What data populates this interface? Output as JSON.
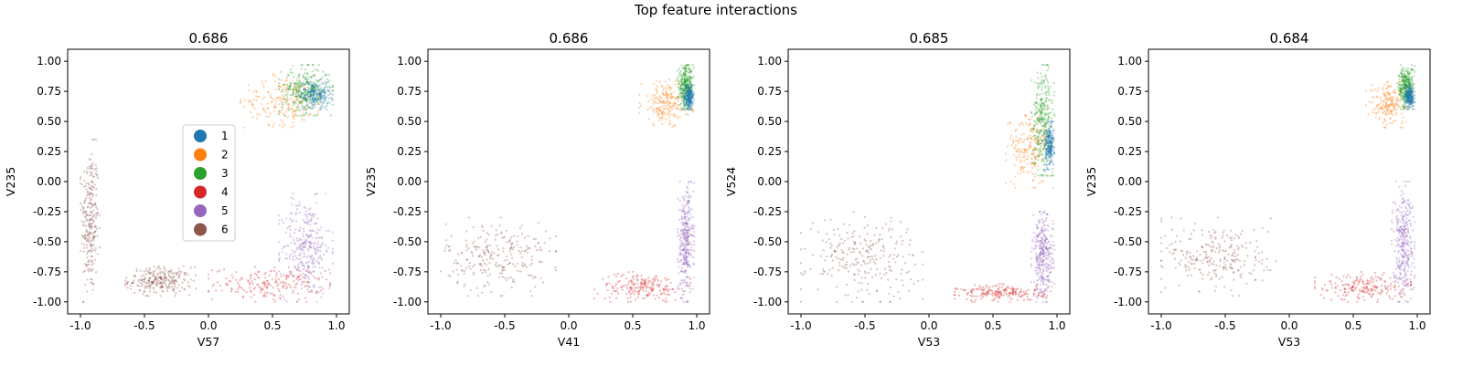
{
  "figure_title": "Top feature interactions",
  "colors": {
    "1": "#1f77b4",
    "2": "#ff7f0e",
    "3": "#2ca02c",
    "4": "#d62728",
    "5": "#9467bd",
    "6": "#8c564b"
  },
  "legend": {
    "placement": "center-left of first panel",
    "entries": [
      "1",
      "2",
      "3",
      "4",
      "5",
      "6"
    ]
  },
  "chart_data": [
    {
      "type": "scatter",
      "title": "0.686",
      "xlabel": "V57",
      "ylabel": "V235",
      "xlim": [
        -1.1,
        1.1
      ],
      "ylim": [
        -1.1,
        1.1
      ],
      "xticks": [
        "-1.0",
        "-0.5",
        "0.0",
        "0.5",
        "1.0"
      ],
      "yticks": [
        "1.00",
        "0.75",
        "0.50",
        "0.25",
        "0.00",
        "-0.25",
        "-0.50",
        "-0.75",
        "-1.00"
      ],
      "grid": false,
      "legend": true,
      "clusters": [
        {
          "group": "6",
          "x": [
            -1.0,
            -0.85
          ],
          "y": [
            -1.0,
            0.35
          ]
        },
        {
          "group": "6",
          "x": [
            -0.65,
            -0.1
          ],
          "y": [
            -0.95,
            -0.7
          ]
        },
        {
          "group": "4",
          "x": [
            0.0,
            0.95
          ],
          "y": [
            -1.0,
            -0.7
          ]
        },
        {
          "group": "5",
          "x": [
            0.55,
            0.97
          ],
          "y": [
            -1.0,
            -0.1
          ]
        },
        {
          "group": "2",
          "x": [
            0.25,
            0.95
          ],
          "y": [
            0.45,
            0.9
          ]
        },
        {
          "group": "3",
          "x": [
            0.55,
            0.97
          ],
          "y": [
            0.55,
            0.97
          ]
        },
        {
          "group": "1",
          "x": [
            0.7,
            0.97
          ],
          "y": [
            0.6,
            0.85
          ]
        }
      ]
    },
    {
      "type": "scatter",
      "title": "0.686",
      "xlabel": "V41",
      "ylabel": "V235",
      "xlim": [
        -1.1,
        1.1
      ],
      "ylim": [
        -1.1,
        1.1
      ],
      "xticks": [
        "-1.0",
        "-0.5",
        "0.0",
        "0.5",
        "1.0"
      ],
      "yticks": [
        "1.00",
        "0.75",
        "0.50",
        "0.25",
        "0.00",
        "-0.25",
        "-0.50",
        "-0.75",
        "-1.00"
      ],
      "grid": false,
      "legend": false,
      "clusters": [
        {
          "group": "6",
          "x": [
            -1.0,
            -0.1
          ],
          "y": [
            -0.95,
            -0.3
          ]
        },
        {
          "group": "4",
          "x": [
            0.2,
            0.95
          ],
          "y": [
            -1.0,
            -0.75
          ]
        },
        {
          "group": "5",
          "x": [
            0.85,
            0.98
          ],
          "y": [
            -1.0,
            0.0
          ]
        },
        {
          "group": "2",
          "x": [
            0.55,
            0.97
          ],
          "y": [
            0.45,
            0.85
          ]
        },
        {
          "group": "3",
          "x": [
            0.85,
            0.98
          ],
          "y": [
            0.6,
            0.97
          ]
        },
        {
          "group": "1",
          "x": [
            0.9,
            0.98
          ],
          "y": [
            0.6,
            0.8
          ]
        }
      ]
    },
    {
      "type": "scatter",
      "title": "0.685",
      "xlabel": "V53",
      "ylabel": "V524",
      "xlim": [
        -1.1,
        1.1
      ],
      "ylim": [
        -1.1,
        1.1
      ],
      "xticks": [
        "-1.0",
        "-0.5",
        "0.0",
        "0.5",
        "1.0"
      ],
      "yticks": [
        "1.00",
        "0.75",
        "0.50",
        "0.25",
        "0.00",
        "-0.25",
        "-0.50",
        "-0.75",
        "-1.00"
      ],
      "grid": false,
      "legend": false,
      "clusters": [
        {
          "group": "6",
          "x": [
            -1.0,
            -0.05
          ],
          "y": [
            -1.0,
            -0.25
          ]
        },
        {
          "group": "4",
          "x": [
            0.2,
            0.95
          ],
          "y": [
            -1.0,
            -0.85
          ]
        },
        {
          "group": "5",
          "x": [
            0.8,
            0.98
          ],
          "y": [
            -1.0,
            -0.25
          ]
        },
        {
          "group": "2",
          "x": [
            0.6,
            0.97
          ],
          "y": [
            -0.05,
            0.6
          ]
        },
        {
          "group": "3",
          "x": [
            0.8,
            0.98
          ],
          "y": [
            0.05,
            0.97
          ]
        },
        {
          "group": "1",
          "x": [
            0.9,
            0.98
          ],
          "y": [
            0.1,
            0.5
          ]
        }
      ]
    },
    {
      "type": "scatter",
      "title": "0.684",
      "xlabel": "V53",
      "ylabel": "V235",
      "xlim": [
        -1.1,
        1.1
      ],
      "ylim": [
        -1.1,
        1.1
      ],
      "xticks": [
        "-1.0",
        "-0.5",
        "0.0",
        "0.5",
        "1.0"
      ],
      "yticks": [
        "1.00",
        "0.75",
        "0.50",
        "0.25",
        "0.00",
        "-0.25",
        "-0.50",
        "-0.75",
        "-1.00"
      ],
      "grid": false,
      "legend": false,
      "clusters": [
        {
          "group": "6",
          "x": [
            -1.0,
            -0.1
          ],
          "y": [
            -0.95,
            -0.3
          ]
        },
        {
          "group": "4",
          "x": [
            0.2,
            0.95
          ],
          "y": [
            -1.0,
            -0.75
          ]
        },
        {
          "group": "5",
          "x": [
            0.8,
            0.98
          ],
          "y": [
            -1.0,
            0.0
          ]
        },
        {
          "group": "2",
          "x": [
            0.6,
            0.97
          ],
          "y": [
            0.45,
            0.85
          ]
        },
        {
          "group": "3",
          "x": [
            0.85,
            0.98
          ],
          "y": [
            0.6,
            0.97
          ]
        },
        {
          "group": "1",
          "x": [
            0.9,
            0.98
          ],
          "y": [
            0.6,
            0.8
          ]
        }
      ]
    }
  ]
}
